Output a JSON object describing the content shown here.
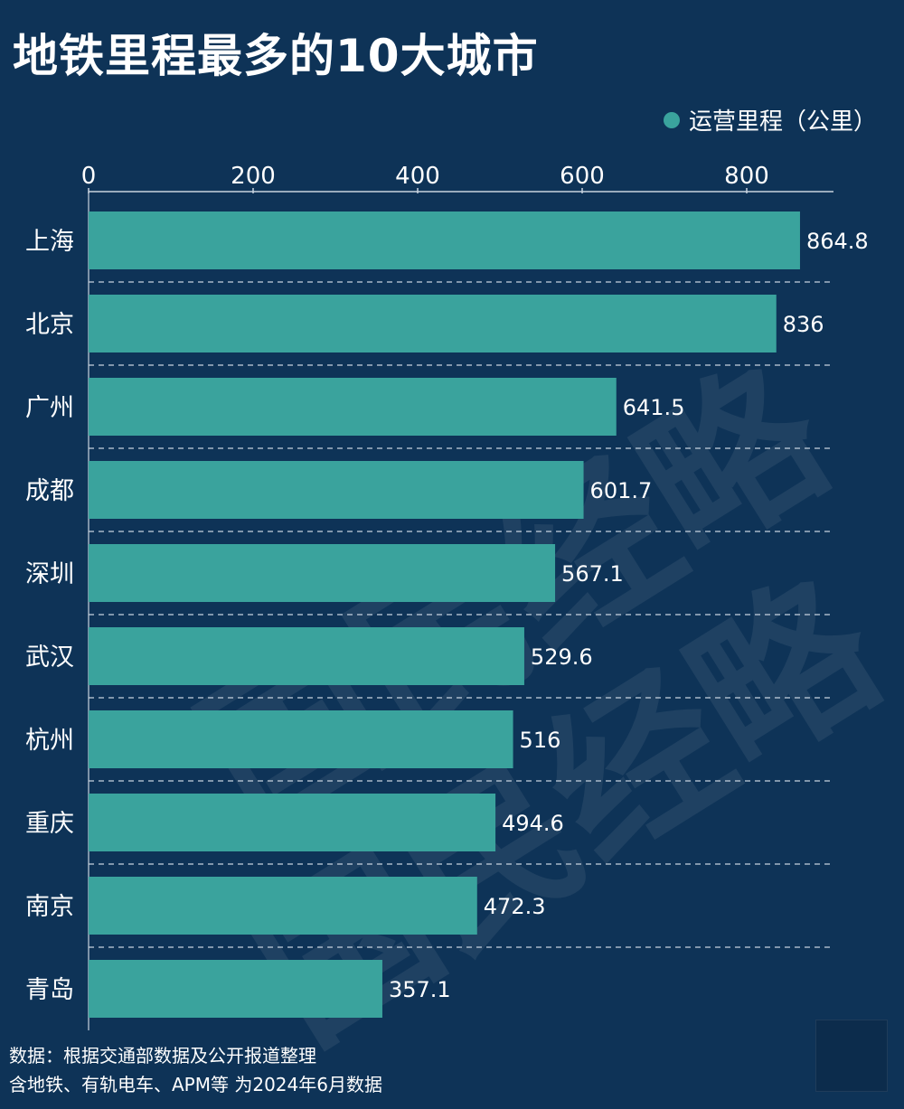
{
  "title": "地铁里程最多的10大城市",
  "legend": {
    "label": "运营里程（公里）",
    "color": "#3aa39d"
  },
  "footer": {
    "line1": "数据：根据交通部数据及公开报道整理",
    "line2": "含地铁、有轨电车、APM等 为2024年6月数据"
  },
  "watermark": {
    "text": "国民经略"
  },
  "colors": {
    "background": "#0e3357",
    "bar": "#3aa39d",
    "text": "#ffffff",
    "grid": "#c8d3de"
  },
  "chart_data": {
    "type": "bar",
    "orientation": "horizontal",
    "categories": [
      "上海",
      "北京",
      "广州",
      "成都",
      "深圳",
      "武汉",
      "杭州",
      "重庆",
      "南京",
      "青岛"
    ],
    "series": [
      {
        "name": "运营里程（公里）",
        "values": [
          864.8,
          836,
          641.5,
          601.7,
          567.1,
          529.6,
          516,
          494.6,
          472.3,
          357.1
        ]
      }
    ],
    "value_labels": [
      "864.8",
      "836",
      "641.5",
      "601.7",
      "567.1",
      "529.6",
      "516",
      "494.6",
      "472.3",
      "357.1"
    ],
    "xlim": [
      0,
      910
    ],
    "x_ticks": [
      0,
      200,
      400,
      600,
      800
    ],
    "x_tick_position": "top",
    "grid": "dashed separators between bars",
    "legend_position": "top-right"
  }
}
